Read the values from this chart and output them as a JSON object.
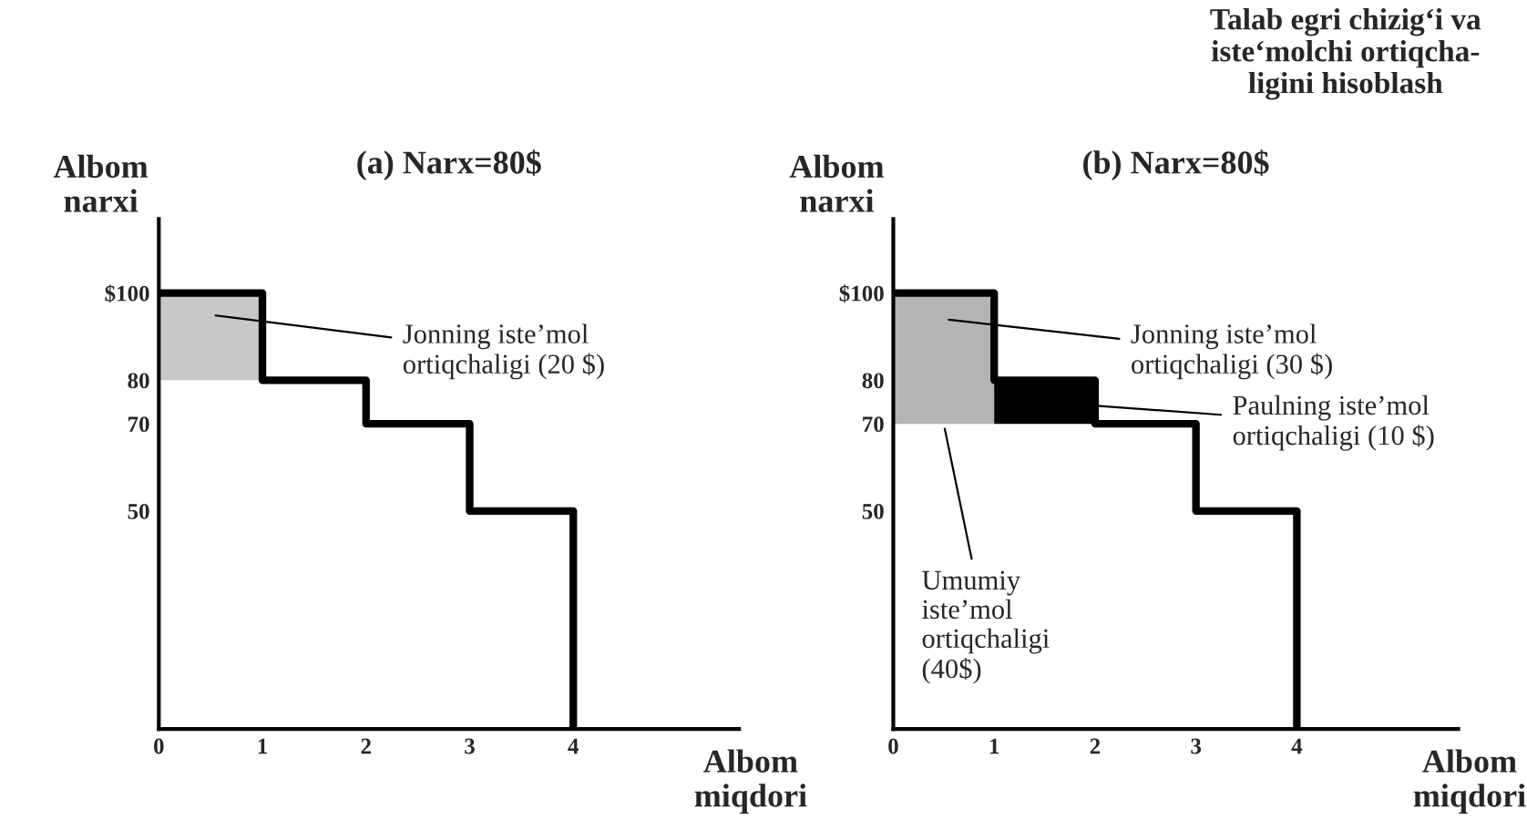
{
  "chart_data": [
    {
      "type": "step",
      "title": "(a) Narx=80$",
      "xlabel": "Albom\nmiqdori",
      "ylabel": "Albom\nnarxi",
      "xlim": [
        0,
        5.6
      ],
      "xticks": [
        0,
        1,
        2,
        3,
        4
      ],
      "ylim": [
        0,
        117
      ],
      "yticks": [
        {
          "value": 100,
          "label": "$100"
        },
        80,
        70,
        50
      ],
      "grid": false,
      "legend": false,
      "series": [
        {
          "type": "bar",
          "x": [
            0.5
          ],
          "base": [
            80
          ],
          "values": [
            20
          ],
          "color": "#c8c8c8"
        },
        {
          "x": [
            0,
            1,
            2,
            3,
            4
          ],
          "values": [
            100,
            80,
            70,
            50,
            0
          ],
          "color": "#000000"
        }
      ],
      "annotations": [
        "Jonning iste’mol\nortiqchaligi (20 $)"
      ]
    },
    {
      "type": "step",
      "title": "(b) Narx=80$",
      "xlabel": "Albom\nmiqdori",
      "ylabel": "Albom\nnarxi",
      "xlim": [
        0,
        5.6
      ],
      "xticks": [
        0,
        1,
        2,
        3,
        4
      ],
      "ylim": [
        0,
        117
      ],
      "yticks": [
        {
          "value": 100,
          "label": "$100"
        },
        80,
        70,
        50
      ],
      "grid": false,
      "legend": false,
      "series": [
        {
          "type": "bar",
          "x": [
            0.5,
            1.5
          ],
          "base": [
            70,
            70
          ],
          "values": [
            30,
            10
          ],
          "colors": [
            "#b4b4b4",
            "#000000"
          ]
        },
        {
          "x": [
            0,
            1,
            2,
            3,
            4
          ],
          "values": [
            100,
            80,
            70,
            50,
            0
          ],
          "color": "#000000"
        }
      ],
      "annotations": [
        "Jonning iste’mol\nortiqchaligi (30 $)",
        "Paulning iste’mol\nortiqchaligi (10 $)",
        {
          "text": "Umumiy\niste’mol\nortiqchaligi\n(40$)",
          "x": 0.5,
          "y": 70
        },
        "Talab egri chizig‘i va\niste‘molchi ortiqcha-\nligini hisoblash"
      ]
    }
  ]
}
